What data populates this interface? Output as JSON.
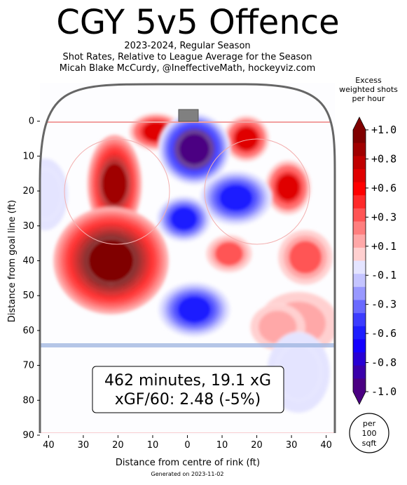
{
  "header": {
    "title": "CGY 5v5 Offence",
    "subtitle_lines": [
      "2023-2024, Regular Season",
      "Shot Rates, Relative to League Average for the Season",
      "Micah Blake McCurdy, @IneffectiveMath, hockeyviz.com"
    ]
  },
  "colorbar": {
    "title_lines": [
      "Excess",
      "weighted shots",
      "per hour"
    ],
    "tick_labels": [
      "+1.0",
      "+0.8",
      "+0.6",
      "+0.3",
      "+0.1",
      "-0.1",
      "-0.3",
      "-0.6",
      "-0.8",
      "-1.0"
    ],
    "colors_positive": [
      "#ffd0d0",
      "#ffa8a8",
      "#ff7f7f",
      "#ff5555",
      "#ff2a2a",
      "#ff0000",
      "#e00000",
      "#c00000",
      "#a00000",
      "#800000"
    ],
    "colors_negative": [
      "#4b0082",
      "#3a00aa",
      "#2800d4",
      "#1400ff",
      "#1e1eff",
      "#3c3cff",
      "#6a6aff",
      "#9898ff",
      "#c4c4ff",
      "#e4e4ff"
    ]
  },
  "summary_box": {
    "line1": "462 minutes, 19.1 xG",
    "line2": "xGF/60: 2.48 (-5%)"
  },
  "legend_circle": {
    "line1": "per",
    "line2": "100",
    "line3": "sqft"
  },
  "footer": "Generated on 2023-11-02",
  "chart_data": {
    "type": "heatmap",
    "xlabel": "Distance from centre of rink (ft)",
    "ylabel": "Distance from goal line (ft)",
    "xlim": [
      -42.5,
      42.5
    ],
    "ylim": [
      90,
      -11
    ],
    "x_ticks": [
      -40,
      -30,
      -20,
      -10,
      0,
      10,
      20,
      30,
      40
    ],
    "x_tick_labels": [
      "40",
      "30",
      "20",
      "10",
      "0",
      "10",
      "20",
      "30",
      "40"
    ],
    "y_ticks": [
      0,
      10,
      20,
      30,
      40,
      50,
      60,
      70,
      80,
      90
    ],
    "y_tick_labels": [
      "0",
      "10",
      "20",
      "30",
      "40",
      "50",
      "60",
      "70",
      "80",
      "90"
    ],
    "value_range": [
      -1.0,
      1.0
    ],
    "hotspots": [
      {
        "x": -22,
        "y": 40,
        "value": 1.0,
        "rx": 12,
        "ry": 11
      },
      {
        "x": -21,
        "y": 18,
        "value": 0.8,
        "rx": 5,
        "ry": 10
      },
      {
        "x": -9,
        "y": 3,
        "value": 0.6,
        "rx": 5,
        "ry": 3
      },
      {
        "x": 17,
        "y": 5,
        "value": 0.6,
        "rx": 4,
        "ry": 4
      },
      {
        "x": 29,
        "y": 19,
        "value": 0.6,
        "rx": 4,
        "ry": 5
      },
      {
        "x": 34,
        "y": 39,
        "value": 0.3,
        "rx": 5,
        "ry": 5
      },
      {
        "x": 12,
        "y": 38,
        "value": 0.3,
        "rx": 4,
        "ry": 3
      },
      {
        "x": 32,
        "y": 58,
        "value": 0.1,
        "rx": 8,
        "ry": 6
      },
      {
        "x": 26,
        "y": 59,
        "value": 0.1,
        "rx": 5,
        "ry": 4
      },
      {
        "x": 2,
        "y": 8,
        "value": -1.0,
        "rx": 7,
        "ry": 7
      },
      {
        "x": 14,
        "y": 22,
        "value": -0.6,
        "rx": 7,
        "ry": 5
      },
      {
        "x": -1,
        "y": 28,
        "value": -0.6,
        "rx": 5,
        "ry": 4
      },
      {
        "x": 2,
        "y": 54,
        "value": -0.6,
        "rx": 7,
        "ry": 5
      },
      {
        "x": -41,
        "y": 21,
        "value": -0.1,
        "rx": 4,
        "ry": 7
      },
      {
        "x": 32,
        "y": 72,
        "value": -0.1,
        "rx": 6,
        "ry": 8
      }
    ]
  }
}
